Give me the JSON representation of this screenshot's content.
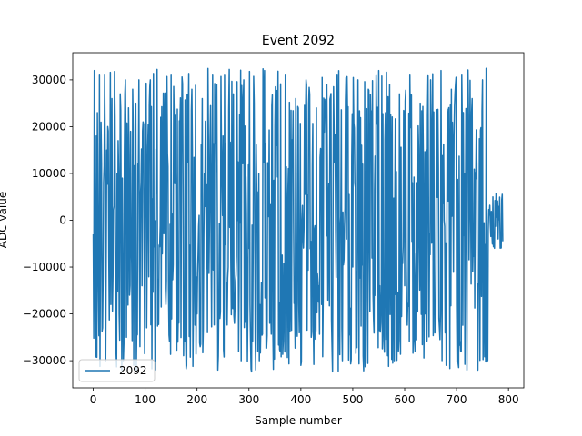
{
  "chart_data": {
    "type": "line",
    "title": "Event 2092",
    "xlabel": "Sample number",
    "ylabel": "ADC value",
    "xlim": [
      -39.5,
      829.5
    ],
    "ylim": [
      -35800,
      35800
    ],
    "xticks": [
      0,
      100,
      200,
      300,
      400,
      500,
      600,
      700,
      800
    ],
    "yticks": [
      -30000,
      -20000,
      -10000,
      0,
      10000,
      20000,
      30000
    ],
    "grid": false,
    "legend_position": "lower left",
    "series": [
      {
        "name": "2092",
        "color": "#1f77b4",
        "sample_count": 790,
        "amplitude_range": [
          -32768,
          32767
        ],
        "x": [
          0,
          2,
          4,
          6,
          8,
          10,
          12,
          14,
          16,
          18,
          20,
          22,
          24,
          26,
          28,
          30,
          32,
          34,
          36,
          38,
          40,
          42,
          44,
          46,
          48,
          50,
          52,
          54,
          56,
          58,
          60,
          62,
          64,
          66,
          68,
          70,
          72,
          74,
          76,
          78,
          80,
          82,
          84,
          86,
          88,
          90,
          92,
          94,
          96,
          98,
          100,
          110,
          120,
          130,
          140,
          150,
          160,
          170,
          180,
          190,
          200,
          210,
          220,
          230,
          240,
          250,
          260,
          270,
          280,
          290,
          300,
          310,
          320,
          330,
          340,
          350,
          360,
          370,
          380,
          390,
          400,
          410,
          420,
          430,
          440,
          450,
          460,
          470,
          480,
          490,
          500,
          510,
          520,
          530,
          540,
          550,
          560,
          570,
          580,
          590,
          600,
          610,
          620,
          630,
          640,
          650,
          660,
          670,
          680,
          690,
          700,
          710,
          720,
          730,
          740,
          750,
          760,
          770,
          780,
          789
        ],
        "y": [
          -3000,
          32000,
          -28000,
          18000,
          23000,
          -15000,
          31000,
          -5000,
          12000,
          -23000,
          8000,
          31000,
          -30000,
          15000,
          20000,
          -8000,
          5000,
          -18000,
          26000,
          -12000,
          3000,
          22000,
          -28000,
          10000,
          17000,
          -20000,
          27000,
          -4000,
          9000,
          -30000,
          14000,
          30000,
          -25000,
          6000,
          24000,
          -16000,
          19000,
          -9000,
          28000,
          -31000,
          2000,
          25000,
          -22000,
          12000,
          30000,
          -27000,
          8000,
          -14000,
          21000,
          -6000,
          4000,
          30000,
          -29000,
          22000,
          -18000,
          31000,
          -26000,
          15000,
          -31000,
          28000,
          -20000,
          26000,
          -24000,
          31000,
          -32000,
          18000,
          -10000,
          27000,
          -28000,
          30000,
          -6000,
          25000,
          -30000,
          32000,
          -22000,
          20000,
          -28000,
          31000,
          -15000,
          26000,
          -31000,
          30000,
          -25000,
          24000,
          -18000,
          29000,
          -27000,
          31000,
          -30000,
          22000,
          -10000,
          30000,
          -29000,
          28000,
          -21000,
          32000,
          -26000,
          18000,
          -30000,
          27000,
          -14000,
          31000,
          -28000,
          25000,
          -20000,
          30000,
          -24000,
          32000,
          -31000,
          28000,
          -18000,
          31000,
          -32000,
          26000,
          -27000,
          30000,
          -30000,
          5000,
          -4000,
          -4500
        ]
      }
    ]
  }
}
